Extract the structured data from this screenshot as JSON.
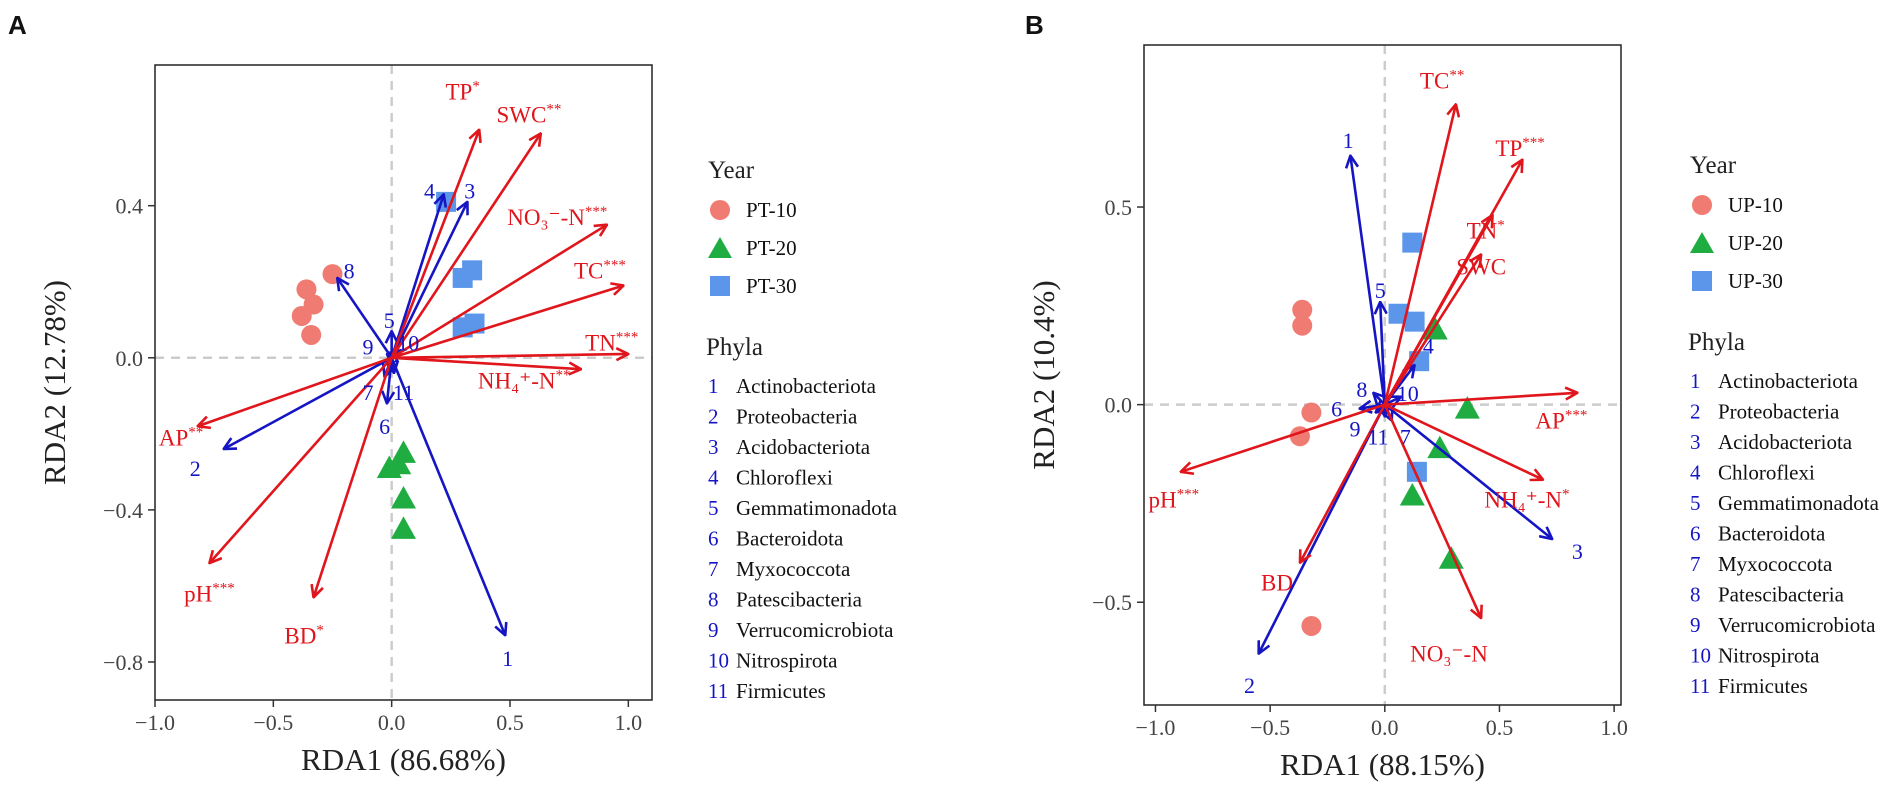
{
  "chart_data": [
    {
      "type": "scatter",
      "panel": "A",
      "xlabel": "RDA1 (86.68%)",
      "ylabel": "RDA2 (12.78%)",
      "xlim": [
        -1.0,
        1.1
      ],
      "ylim": [
        -0.9,
        0.77
      ],
      "xticks": [
        -1.0,
        -0.5,
        0.0,
        0.5,
        1.0
      ],
      "xtick_labels": [
        "−1.0",
        "−0.5",
        "0.0",
        "0.5",
        "1.0"
      ],
      "yticks": [
        -0.8,
        -0.4,
        0.0,
        0.4
      ],
      "ytick_labels": [
        "−0.8",
        "−0.4",
        "0.0",
        "0.4"
      ],
      "groups": [
        {
          "name": "PT-10",
          "shape": "circle",
          "color": "#f07b72",
          "points": [
            [
              -0.25,
              0.22
            ],
            [
              -0.36,
              0.18
            ],
            [
              -0.33,
              0.14
            ],
            [
              -0.38,
              0.11
            ],
            [
              -0.34,
              0.06
            ]
          ]
        },
        {
          "name": "PT-20",
          "shape": "triangle",
          "color": "#1fad41",
          "points": [
            [
              0.05,
              -0.25
            ],
            [
              -0.01,
              -0.29
            ],
            [
              0.03,
              -0.28
            ],
            [
              0.05,
              -0.37
            ],
            [
              0.05,
              -0.45
            ]
          ]
        },
        {
          "name": "PT-30",
          "shape": "square",
          "color": "#5b96ea",
          "points": [
            [
              0.23,
              0.41
            ],
            [
              0.34,
              0.23
            ],
            [
              0.3,
              0.21
            ],
            [
              0.3,
              0.08
            ],
            [
              0.35,
              0.09
            ]
          ]
        }
      ],
      "env_vectors": [
        {
          "label": "TP",
          "sig": "*",
          "x": 0.37,
          "y": 0.6,
          "lx": 0.3,
          "ly": 0.7
        },
        {
          "label": "SWC",
          "sig": "**",
          "x": 0.63,
          "y": 0.59,
          "lx": 0.58,
          "ly": 0.64
        },
        {
          "label": "NO₃⁻-N",
          "sig": "***",
          "x": 0.91,
          "y": 0.35,
          "lx": 0.7,
          "ly": 0.37
        },
        {
          "label": "TC",
          "sig": "***",
          "x": 0.98,
          "y": 0.19,
          "lx": 0.88,
          "ly": 0.23
        },
        {
          "label": "TN",
          "sig": "***",
          "x": 1.0,
          "y": 0.01,
          "lx": 0.93,
          "ly": 0.04
        },
        {
          "label": "NH₄⁺-N",
          "sig": "**",
          "x": 0.8,
          "y": -0.03,
          "lx": 0.56,
          "ly": -0.06
        },
        {
          "label": "AP",
          "sig": "**",
          "x": -0.82,
          "y": -0.18,
          "lx": -0.89,
          "ly": -0.21
        },
        {
          "label": "pH",
          "sig": "***",
          "x": -0.77,
          "y": -0.54,
          "lx": -0.77,
          "ly": -0.62
        },
        {
          "label": "BD",
          "sig": "*",
          "x": -0.33,
          "y": -0.63,
          "lx": -0.37,
          "ly": -0.73
        }
      ],
      "phyla_vectors": [
        {
          "id": "1",
          "x": 0.48,
          "y": -0.73,
          "lx": 0.49,
          "ly": -0.79
        },
        {
          "id": "2",
          "x": -0.71,
          "y": -0.24,
          "lx": -0.83,
          "ly": -0.29
        },
        {
          "id": "3",
          "x": 0.32,
          "y": 0.41,
          "lx": 0.33,
          "ly": 0.44
        },
        {
          "id": "4",
          "x": 0.22,
          "y": 0.43,
          "lx": 0.16,
          "ly": 0.44
        },
        {
          "id": "5",
          "x": 0.0,
          "y": 0.07,
          "lx": -0.01,
          "ly": 0.1
        },
        {
          "id": "6",
          "x": -0.02,
          "y": -0.12,
          "lx": -0.03,
          "ly": -0.18
        },
        {
          "id": "7",
          "x": -0.03,
          "y": -0.05,
          "lx": -0.1,
          "ly": -0.09
        },
        {
          "id": "8",
          "x": -0.23,
          "y": 0.21,
          "lx": -0.18,
          "ly": 0.23
        },
        {
          "id": "9",
          "x": -0.02,
          "y": 0.01,
          "lx": -0.1,
          "ly": 0.03
        },
        {
          "id": "10",
          "x": 0.04,
          "y": 0.02,
          "lx": 0.07,
          "ly": 0.04
        },
        {
          "id": "11",
          "x": 0.01,
          "y": -0.04,
          "lx": 0.05,
          "ly": -0.09
        }
      ]
    },
    {
      "type": "scatter",
      "panel": "B",
      "xlabel": "RDA1 (88.15%)",
      "ylabel": "RDA2 (10.4%)",
      "xlim": [
        -1.05,
        1.03
      ],
      "ylim": [
        -0.76,
        0.91
      ],
      "xticks": [
        -1.0,
        -0.5,
        0.0,
        0.5,
        1.0
      ],
      "xtick_labels": [
        "−1.0",
        "−0.5",
        "0.0",
        "0.5",
        "1.0"
      ],
      "yticks": [
        -0.5,
        0.0,
        0.5
      ],
      "ytick_labels": [
        "−0.5",
        "0.0",
        "0.5"
      ],
      "groups": [
        {
          "name": "UP-10",
          "shape": "circle",
          "color": "#f07b72",
          "points": [
            [
              -0.36,
              0.24
            ],
            [
              -0.36,
              0.2
            ],
            [
              -0.32,
              -0.02
            ],
            [
              -0.37,
              -0.08
            ],
            [
              -0.32,
              -0.56
            ]
          ]
        },
        {
          "name": "UP-20",
          "shape": "triangle",
          "color": "#1fad41",
          "points": [
            [
              0.22,
              0.19
            ],
            [
              0.36,
              -0.01
            ],
            [
              0.24,
              -0.11
            ],
            [
              0.12,
              -0.23
            ],
            [
              0.29,
              -0.39
            ]
          ]
        },
        {
          "name": "UP-30",
          "shape": "square",
          "color": "#5b96ea",
          "points": [
            [
              0.12,
              0.41
            ],
            [
              0.06,
              0.23
            ],
            [
              0.13,
              0.21
            ],
            [
              0.15,
              0.11
            ],
            [
              0.14,
              -0.17
            ]
          ]
        }
      ],
      "env_vectors": [
        {
          "label": "TC",
          "sig": "**",
          "x": 0.31,
          "y": 0.76,
          "lx": 0.25,
          "ly": 0.82
        },
        {
          "label": "TP",
          "sig": "***",
          "x": 0.6,
          "y": 0.62,
          "lx": 0.59,
          "ly": 0.65
        },
        {
          "label": "TN",
          "sig": "*",
          "x": 0.47,
          "y": 0.48,
          "lx": 0.44,
          "ly": 0.44
        },
        {
          "label": "SWC",
          "sig": "",
          "x": 0.42,
          "y": 0.38,
          "lx": 0.42,
          "ly": 0.35
        },
        {
          "label": "AP",
          "sig": "***",
          "x": 0.84,
          "y": 0.03,
          "lx": 0.77,
          "ly": -0.04
        },
        {
          "label": "NH₄⁺-N",
          "sig": "*",
          "x": 0.69,
          "y": -0.19,
          "lx": 0.62,
          "ly": -0.24
        },
        {
          "label": "NO₃⁻-N",
          "sig": "",
          "x": 0.42,
          "y": -0.54,
          "lx": 0.28,
          "ly": -0.63
        },
        {
          "label": "BD",
          "sig": "",
          "x": -0.37,
          "y": -0.4,
          "lx": -0.47,
          "ly": -0.45
        },
        {
          "label": "pH",
          "sig": "***",
          "x": -0.89,
          "y": -0.17,
          "lx": -0.92,
          "ly": -0.24
        }
      ],
      "phyla_vectors": [
        {
          "id": "1",
          "x": -0.15,
          "y": 0.63,
          "lx": -0.16,
          "ly": 0.67
        },
        {
          "id": "2",
          "x": -0.55,
          "y": -0.63,
          "lx": -0.59,
          "ly": -0.71
        },
        {
          "id": "3",
          "x": 0.73,
          "y": -0.34,
          "lx": 0.84,
          "ly": -0.37
        },
        {
          "id": "4",
          "x": 0.13,
          "y": 0.1,
          "lx": 0.19,
          "ly": 0.15
        },
        {
          "id": "5",
          "x": -0.02,
          "y": 0.26,
          "lx": -0.02,
          "ly": 0.29
        },
        {
          "id": "6",
          "x": -0.11,
          "y": -0.01,
          "lx": -0.21,
          "ly": -0.01
        },
        {
          "id": "7",
          "x": 0.03,
          "y": -0.04,
          "lx": 0.09,
          "ly": -0.08
        },
        {
          "id": "8",
          "x": -0.05,
          "y": 0.03,
          "lx": -0.1,
          "ly": 0.04
        },
        {
          "id": "9",
          "x": -0.04,
          "y": -0.02,
          "lx": -0.13,
          "ly": -0.06
        },
        {
          "id": "10",
          "x": 0.07,
          "y": 0.02,
          "lx": 0.1,
          "ly": 0.03
        },
        {
          "id": "11",
          "x": 0.0,
          "y": -0.03,
          "lx": -0.03,
          "ly": -0.08
        }
      ]
    }
  ],
  "panels": [
    {
      "letter": "A",
      "legend": {
        "year_title": "Year",
        "year_items": [
          {
            "label": "PT-10",
            "shape": "circle",
            "color": "#f07b72"
          },
          {
            "label": "PT-20",
            "shape": "triangle",
            "color": "#1fad41"
          },
          {
            "label": "PT-30",
            "shape": "square",
            "color": "#5b96ea"
          }
        ],
        "phyla_title": "Phyla",
        "phyla_items": [
          {
            "num": "1",
            "name": "Actinobacteriota"
          },
          {
            "num": "2",
            "name": "Proteobacteria"
          },
          {
            "num": "3",
            "name": "Acidobacteriota"
          },
          {
            "num": "4",
            "name": "Chloroflexi"
          },
          {
            "num": "5",
            "name": "Gemmatimonadota"
          },
          {
            "num": "6",
            "name": "Bacteroidota"
          },
          {
            "num": "7",
            "name": "Myxococcota"
          },
          {
            "num": "8",
            "name": "Patescibacteria"
          },
          {
            "num": "9",
            "name": "Verrucomicrobiota"
          },
          {
            "num": "10",
            "name": "Nitrospirota"
          },
          {
            "num": "11",
            "name": "Firmicutes"
          }
        ]
      }
    },
    {
      "letter": "B",
      "legend": {
        "year_title": "Year",
        "year_items": [
          {
            "label": "UP-10",
            "shape": "circle",
            "color": "#f07b72"
          },
          {
            "label": "UP-20",
            "shape": "triangle",
            "color": "#1fad41"
          },
          {
            "label": "UP-30",
            "shape": "square",
            "color": "#5b96ea"
          }
        ],
        "phyla_title": "Phyla",
        "phyla_items": [
          {
            "num": "1",
            "name": "Actinobacteriota"
          },
          {
            "num": "2",
            "name": "Proteobacteria"
          },
          {
            "num": "3",
            "name": "Acidobacteriota"
          },
          {
            "num": "4",
            "name": "Chloroflexi"
          },
          {
            "num": "5",
            "name": "Gemmatimonadota"
          },
          {
            "num": "6",
            "name": "Bacteroidota"
          },
          {
            "num": "7",
            "name": "Myxococcota"
          },
          {
            "num": "8",
            "name": "Patescibacteria"
          },
          {
            "num": "9",
            "name": "Verrucomicrobiota"
          },
          {
            "num": "10",
            "name": "Nitrospirota"
          },
          {
            "num": "11",
            "name": "Firmicutes"
          }
        ]
      }
    }
  ],
  "colors": {
    "env_arrow": "#e0161c",
    "phyla_arrow": "#1515c4",
    "zero_line": "#cccccc",
    "frame": "#222222"
  }
}
